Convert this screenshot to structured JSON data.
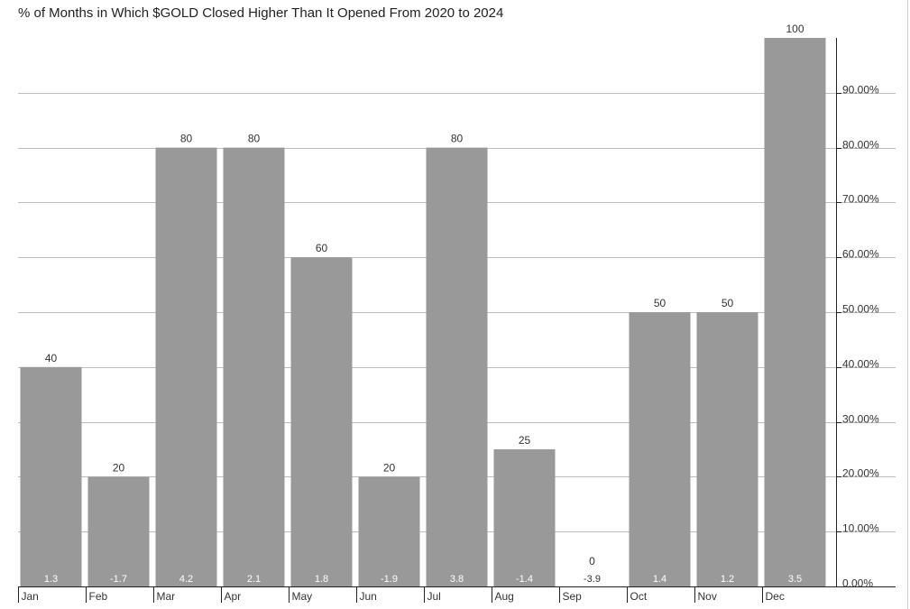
{
  "colors": {
    "bar": "#999999",
    "grid": "#bdbdbd",
    "axis": "#222222",
    "background": "#ffffff"
  },
  "chart_data": {
    "type": "bar",
    "title": "% of Months in Which $GOLD Closed Higher Than It Opened From 2020 to 2024",
    "xlabel": "",
    "ylabel": "",
    "categories": [
      "Jan",
      "Feb",
      "Mar",
      "Apr",
      "May",
      "Jun",
      "Jul",
      "Aug",
      "Sep",
      "Oct",
      "Nov",
      "Dec"
    ],
    "values": [
      40,
      20,
      80,
      80,
      60,
      20,
      80,
      25,
      0,
      50,
      50,
      100
    ],
    "value_labels": [
      "40",
      "20",
      "80",
      "80",
      "60",
      "20",
      "80",
      "25",
      "0",
      "50",
      "50",
      "100"
    ],
    "secondary_labels": [
      "1.3",
      "-1.7",
      "4.2",
      "2.1",
      "1.8",
      "-1.9",
      "3.8",
      "-1.4",
      "-3.9",
      "1.4",
      "1.2",
      "3.5"
    ],
    "ylim": [
      0,
      100
    ],
    "y_ticks": [
      0,
      10,
      20,
      30,
      40,
      50,
      60,
      70,
      80,
      90
    ],
    "y_tick_labels": [
      "0.00%",
      "10.00%",
      "20.00%",
      "30.00%",
      "40.00%",
      "50.00%",
      "60.00%",
      "70.00%",
      "80.00%",
      "90.00%"
    ],
    "y_axis_position": "right",
    "grid": true,
    "legend": "none"
  }
}
